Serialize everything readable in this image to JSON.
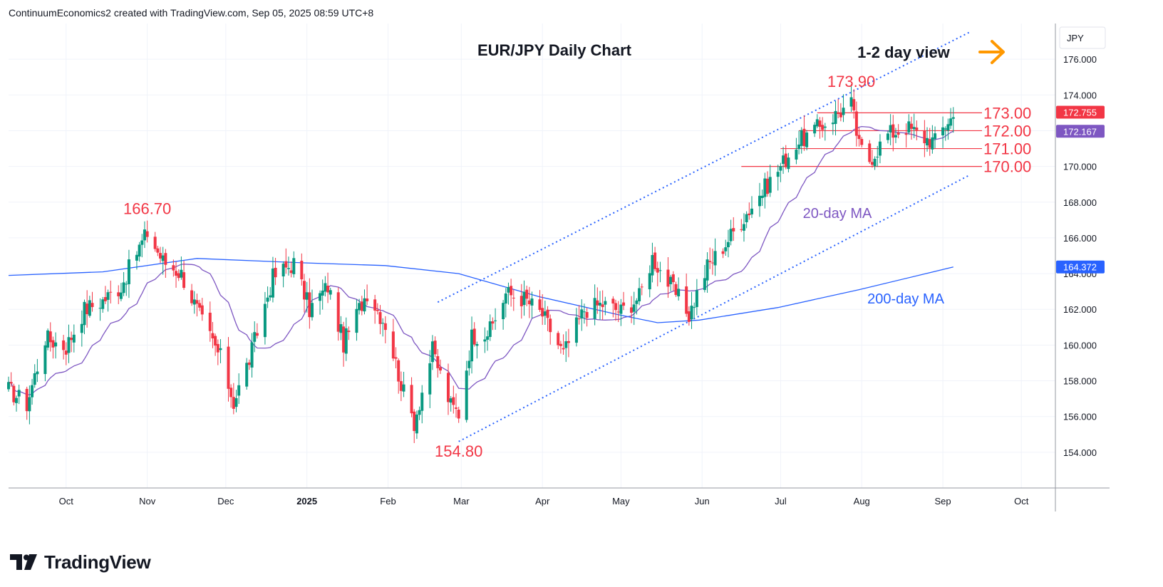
{
  "header": {
    "attribution": "ContinuumEconomics2 created with TradingView.com, Sep 05, 2025 08:59 UTC+8"
  },
  "footer": {
    "brand": "TradingView"
  },
  "colors": {
    "up": "#089981",
    "down": "#f23645",
    "ma20": "#7e57c2",
    "ma200": "#2962ff",
    "channel": "#2962ff",
    "level_text": "#f23645",
    "level_line": "#f23645",
    "ma_label": "#7e57c2",
    "ma200_label": "#2962ff",
    "arrow": "#ff9800",
    "price_badge": "#f23645",
    "ma20_badge": "#7e57c2",
    "ma200_badge": "#2962ff"
  },
  "chart_data": {
    "type": "candlestick",
    "title": "EUR/JPY Daily Chart",
    "currency": "JPY",
    "annotations": {
      "view": "1-2 day view",
      "arrow_icon": "right-arrow-icon",
      "ma20_label": "20-day MA",
      "ma200_label": "200-day MA",
      "highs_lows": [
        {
          "text": "166.70",
          "date": "2024-11-01",
          "price": 166.7
        },
        {
          "text": "173.90",
          "date": "2025-07-28",
          "price": 173.9
        },
        {
          "text": "154.80",
          "date": "2025-02-28",
          "price": 154.8
        }
      ]
    },
    "levels": [
      {
        "text": "173.00",
        "price": 173.0,
        "from": "2025-07-15"
      },
      {
        "text": "172.00",
        "price": 172.0,
        "from": "2025-07-08"
      },
      {
        "text": "171.00",
        "price": 171.0,
        "from": "2025-07-01"
      },
      {
        "text": "170.00",
        "price": 170.0,
        "from": "2025-06-16"
      }
    ],
    "badges": {
      "last_price": "172.755",
      "ma20": "172.167",
      "ma200": "164.372"
    },
    "x_axis": {
      "start": "2024-09-09",
      "end": "2025-10-14",
      "ticks": [
        {
          "label": "Oct",
          "date": "2024-10-01",
          "bold": false
        },
        {
          "label": "Nov",
          "date": "2024-11-01",
          "bold": false
        },
        {
          "label": "Dec",
          "date": "2024-12-01",
          "bold": false
        },
        {
          "label": "2025",
          "date": "2025-01-01",
          "bold": true
        },
        {
          "label": "Feb",
          "date": "2025-02-01",
          "bold": false
        },
        {
          "label": "Mar",
          "date": "2025-03-01",
          "bold": false
        },
        {
          "label": "Apr",
          "date": "2025-04-01",
          "bold": false
        },
        {
          "label": "May",
          "date": "2025-05-01",
          "bold": false
        },
        {
          "label": "Jun",
          "date": "2025-06-01",
          "bold": false
        },
        {
          "label": "Jul",
          "date": "2025-07-01",
          "bold": false
        },
        {
          "label": "Aug",
          "date": "2025-08-01",
          "bold": false
        },
        {
          "label": "Sep",
          "date": "2025-09-01",
          "bold": false
        },
        {
          "label": "Oct",
          "date": "2025-10-01",
          "bold": false
        }
      ]
    },
    "y_axis": {
      "ylim": [
        152.0,
        178.0
      ],
      "ticks": [
        "154.000",
        "156.000",
        "158.000",
        "160.000",
        "162.000",
        "164.000",
        "166.000",
        "168.000",
        "170.000",
        "172.000",
        "174.000",
        "176.000"
      ]
    },
    "channel": {
      "upper": [
        {
          "date": "2025-02-20",
          "price": 162.4
        },
        {
          "date": "2025-09-11",
          "price": 177.5
        }
      ],
      "lower": [
        {
          "date": "2025-02-28",
          "price": 154.6
        },
        {
          "date": "2025-09-11",
          "price": 169.5
        }
      ]
    },
    "ma200": [
      {
        "date": "2024-09-09",
        "price": 163.9
      },
      {
        "date": "2024-10-15",
        "price": 164.1
      },
      {
        "date": "2024-11-20",
        "price": 164.85
      },
      {
        "date": "2024-12-31",
        "price": 164.6
      },
      {
        "date": "2025-01-31",
        "price": 164.45
      },
      {
        "date": "2025-02-28",
        "price": 164.0
      },
      {
        "date": "2025-03-31",
        "price": 162.7
      },
      {
        "date": "2025-04-30",
        "price": 161.7
      },
      {
        "date": "2025-05-15",
        "price": 161.25
      },
      {
        "date": "2025-05-31",
        "price": 161.4
      },
      {
        "date": "2025-06-30",
        "price": 162.1
      },
      {
        "date": "2025-07-31",
        "price": 163.1
      },
      {
        "date": "2025-09-05",
        "price": 164.37
      }
    ],
    "series": [
      {
        "date": "2024-09-09",
        "close": 157.5
      },
      {
        "date": "2024-09-16",
        "close": 156.7
      },
      {
        "date": "2024-09-23",
        "close": 160.4
      },
      {
        "date": "2024-10-01",
        "close": 159.9
      },
      {
        "date": "2024-10-08",
        "close": 162.0
      },
      {
        "date": "2024-10-15",
        "close": 162.5
      },
      {
        "date": "2024-10-22",
        "close": 163.3
      },
      {
        "date": "2024-10-28",
        "close": 165.2
      },
      {
        "date": "2024-11-01",
        "close": 166.3
      },
      {
        "date": "2024-11-07",
        "close": 164.7
      },
      {
        "date": "2024-11-14",
        "close": 164.0
      },
      {
        "date": "2024-11-22",
        "close": 161.3
      },
      {
        "date": "2024-11-29",
        "close": 159.3
      },
      {
        "date": "2024-12-04",
        "close": 156.8
      },
      {
        "date": "2024-12-10",
        "close": 159.2
      },
      {
        "date": "2024-12-19",
        "close": 163.8
      },
      {
        "date": "2024-12-27",
        "close": 164.6
      },
      {
        "date": "2025-01-02",
        "close": 162.0
      },
      {
        "date": "2025-01-09",
        "close": 163.3
      },
      {
        "date": "2025-01-15",
        "close": 160.1
      },
      {
        "date": "2025-01-24",
        "close": 163.0
      },
      {
        "date": "2025-01-31",
        "close": 161.2
      },
      {
        "date": "2025-02-07",
        "close": 157.3
      },
      {
        "date": "2025-02-11",
        "close": 155.7
      },
      {
        "date": "2025-02-18",
        "close": 159.7
      },
      {
        "date": "2025-02-25",
        "close": 156.6
      },
      {
        "date": "2025-02-28",
        "close": 156.2
      },
      {
        "date": "2025-03-05",
        "close": 160.5
      },
      {
        "date": "2025-03-12",
        "close": 160.8
      },
      {
        "date": "2025-03-18",
        "close": 162.9
      },
      {
        "date": "2025-03-25",
        "close": 162.6
      },
      {
        "date": "2025-04-01",
        "close": 161.7
      },
      {
        "date": "2025-04-09",
        "close": 159.5
      },
      {
        "date": "2025-04-17",
        "close": 162.0
      },
      {
        "date": "2025-04-24",
        "close": 162.3
      },
      {
        "date": "2025-05-01",
        "close": 161.9
      },
      {
        "date": "2025-05-08",
        "close": 162.7
      },
      {
        "date": "2025-05-13",
        "close": 164.9
      },
      {
        "date": "2025-05-20",
        "close": 163.3
      },
      {
        "date": "2025-05-27",
        "close": 161.7
      },
      {
        "date": "2025-06-03",
        "close": 164.4
      },
      {
        "date": "2025-06-10",
        "close": 165.7
      },
      {
        "date": "2025-06-17",
        "close": 167.2
      },
      {
        "date": "2025-06-24",
        "close": 168.6
      },
      {
        "date": "2025-06-30",
        "close": 169.8
      },
      {
        "date": "2025-07-07",
        "close": 171.3
      },
      {
        "date": "2025-07-14",
        "close": 172.0
      },
      {
        "date": "2025-07-21",
        "close": 172.8
      },
      {
        "date": "2025-07-28",
        "close": 173.5
      },
      {
        "date": "2025-07-31",
        "close": 171.1
      },
      {
        "date": "2025-08-04",
        "close": 170.4
      },
      {
        "date": "2025-08-11",
        "close": 171.8
      },
      {
        "date": "2025-08-18",
        "close": 172.2
      },
      {
        "date": "2025-08-25",
        "close": 171.6
      },
      {
        "date": "2025-08-29",
        "close": 171.4
      },
      {
        "date": "2025-09-03",
        "close": 172.6
      },
      {
        "date": "2025-09-05",
        "close": 172.755
      }
    ]
  }
}
